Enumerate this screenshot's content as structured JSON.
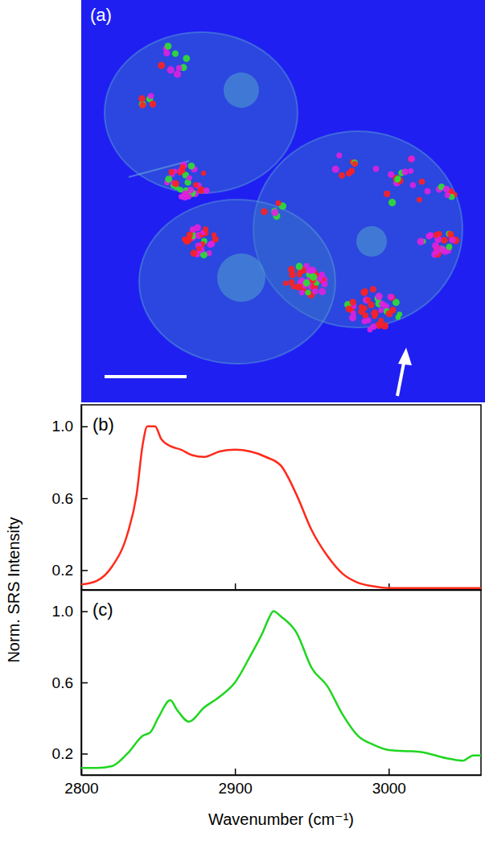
{
  "image": {
    "label": "(a)"
  },
  "chart_data": [
    {
      "type": "line",
      "title": "(b)",
      "ylabel": "Norm. SRS Intensity",
      "tick_labels": "y",
      "x": [
        2800,
        2810,
        2820,
        2830,
        2836,
        2840,
        2843,
        2848,
        2852,
        2858,
        2865,
        2872,
        2880,
        2890,
        2900,
        2910,
        2920,
        2930,
        2940,
        2950,
        2960,
        2970,
        2980,
        2990,
        3000,
        3020,
        3040,
        3060
      ],
      "series": [
        {
          "color": "#ff2a1a",
          "values": [
            0.12,
            0.14,
            0.22,
            0.4,
            0.62,
            0.9,
            1.0,
            1.0,
            0.93,
            0.89,
            0.87,
            0.84,
            0.83,
            0.86,
            0.87,
            0.86,
            0.83,
            0.78,
            0.62,
            0.42,
            0.28,
            0.18,
            0.13,
            0.11,
            0.1,
            0.1,
            0.1,
            0.1
          ]
        }
      ],
      "xlim": [
        2800,
        3060
      ],
      "xticks": [
        2800,
        2900,
        3000
      ],
      "ylim": [
        0.09,
        1.12
      ],
      "yticks": [
        0.2,
        0.6,
        {
          "value": 1,
          "label": "1.0"
        }
      ]
    },
    {
      "type": "line",
      "title": "(c)",
      "xlabel": "Wavenumber (cm⁻¹)",
      "x": [
        2800,
        2810,
        2820,
        2830,
        2840,
        2845,
        2850,
        2858,
        2862,
        2870,
        2880,
        2890,
        2900,
        2910,
        2918,
        2922,
        2925,
        2930,
        2940,
        2950,
        2960,
        2970,
        2980,
        2990,
        3000,
        3020,
        3040,
        3048,
        3055,
        3060
      ],
      "series": [
        {
          "color": "#1fd61f",
          "values": [
            0.12,
            0.12,
            0.13,
            0.2,
            0.3,
            0.32,
            0.4,
            0.5,
            0.45,
            0.38,
            0.46,
            0.52,
            0.6,
            0.75,
            0.88,
            0.96,
            1.0,
            0.97,
            0.88,
            0.68,
            0.58,
            0.42,
            0.3,
            0.25,
            0.22,
            0.21,
            0.17,
            0.16,
            0.19,
            0.19
          ]
        }
      ],
      "xlim": [
        2800,
        3060
      ],
      "xticks": [
        2800,
        2900,
        3000
      ],
      "ylim": [
        0.08,
        1.12
      ],
      "yticks": [
        0.2,
        0.6,
        {
          "value": 1,
          "label": "1.0"
        }
      ]
    }
  ]
}
